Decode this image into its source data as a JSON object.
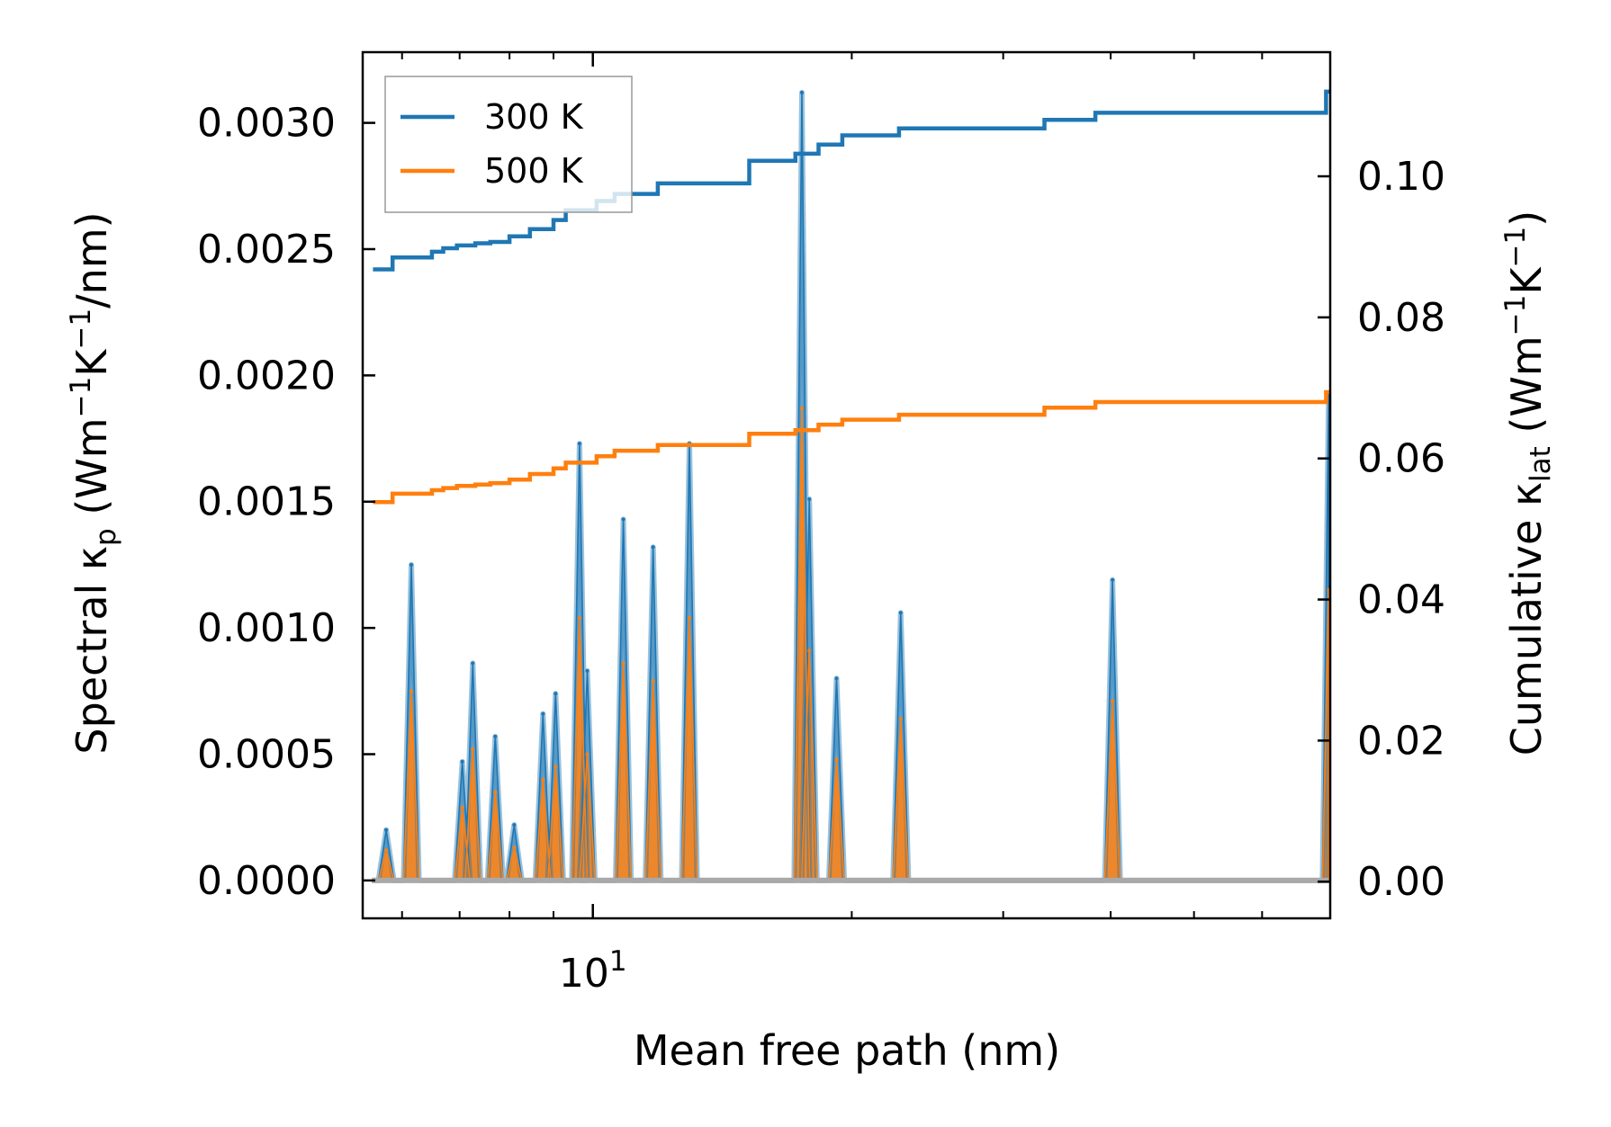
{
  "chart_data": {
    "type": "line",
    "xlabel": "Mean free path (nm)",
    "ylabel_left": {
      "prefix": "Spectral κ",
      "sub": "p",
      "mid1": " (Wm",
      "sup1": "−1",
      "mid2": "K",
      "sup2": "−1",
      "suffix": "/nm)"
    },
    "ylabel_right": {
      "prefix": "Cumulative κ",
      "sub": "lat",
      "mid1": " (Wm",
      "sup1": "−1",
      "mid2": "K",
      "sup2": "−1",
      "suffix": ")"
    },
    "x_scale": "log",
    "xlim": [
      5.4,
      72
    ],
    "x_major_tick": {
      "value": 10,
      "base": "10",
      "exponent": "1"
    },
    "x_minor_ticks": [
      6,
      7,
      8,
      9,
      20,
      30,
      40,
      50,
      60
    ],
    "ylim_left": [
      -0.00015,
      0.00328
    ],
    "yticks_left": [
      "0.0000",
      "0.0005",
      "0.0010",
      "0.0015",
      "0.0020",
      "0.0025",
      "0.0030"
    ],
    "ylim_right": [
      -0.0052,
      0.1176
    ],
    "yticks_right": [
      "0.00",
      "0.02",
      "0.04",
      "0.06",
      "0.08",
      "0.10"
    ],
    "legend": {
      "location": "upper-left",
      "entries": [
        "300 K",
        "500 K"
      ]
    },
    "colors": {
      "300K": "#1f77b4",
      "500K": "#ff7f0e",
      "band": "#a9a9a9"
    },
    "spectral_peaks": {
      "mfp_nm": [
        5.75,
        6.15,
        7.05,
        7.25,
        7.7,
        8.1,
        8.75,
        9.05,
        9.65,
        9.85,
        10.85,
        11.75,
        12.95,
        17.5,
        17.85,
        19.2,
        22.8,
        40.2,
        72.0
      ],
      "series": [
        {
          "name": "300 K",
          "values": [
            0.0002,
            0.00125,
            0.00047,
            0.00086,
            0.00057,
            0.00022,
            0.00066,
            0.00074,
            0.00173,
            0.00083,
            0.00143,
            0.00132,
            0.00173,
            0.00312,
            0.00151,
            0.0008,
            0.00106,
            0.00119,
            0.00192
          ]
        },
        {
          "name": "500 K",
          "values": [
            0.00012,
            0.00075,
            0.00029,
            0.00052,
            0.00035,
            0.00013,
            0.0004,
            0.00045,
            0.00104,
            0.0005,
            0.00086,
            0.00079,
            0.00104,
            0.00187,
            0.00091,
            0.00048,
            0.00064,
            0.00071,
            0.00115
          ]
        }
      ]
    },
    "cumulative": {
      "series": [
        {
          "name": "300 K",
          "mfp_nm": [
            5.55,
            5.7,
            5.85,
            6.3,
            6.5,
            6.7,
            6.95,
            7.3,
            7.6,
            8.0,
            8.45,
            9.0,
            9.3,
            10.1,
            10.6,
            11.9,
            12.3,
            15.2,
            16.1,
            17.2,
            18.3,
            19.5,
            21.0,
            22.7,
            24.5,
            33.5,
            38.4,
            70.5,
            71.2,
            72.0
          ],
          "values": [
            0.0868,
            0.0868,
            0.0885,
            0.0885,
            0.0893,
            0.0898,
            0.0902,
            0.0905,
            0.0907,
            0.0915,
            0.0925,
            0.0938,
            0.0952,
            0.0965,
            0.0975,
            0.099,
            0.099,
            0.1022,
            0.1022,
            0.1032,
            0.1045,
            0.1058,
            0.1058,
            0.1068,
            0.1068,
            0.108,
            0.109,
            0.109,
            0.112,
            0.112
          ]
        },
        {
          "name": "500 K",
          "mfp_nm": [
            5.55,
            5.7,
            5.85,
            6.3,
            6.5,
            6.7,
            6.95,
            7.3,
            7.6,
            8.0,
            8.45,
            9.0,
            9.3,
            10.1,
            10.6,
            11.9,
            12.3,
            15.2,
            16.1,
            17.2,
            18.3,
            19.5,
            21.0,
            22.7,
            24.5,
            33.5,
            38.4,
            70.5,
            71.2,
            72.0
          ],
          "values": [
            0.0538,
            0.0538,
            0.055,
            0.055,
            0.0555,
            0.0558,
            0.0561,
            0.0563,
            0.0565,
            0.057,
            0.0578,
            0.0586,
            0.0594,
            0.0603,
            0.0611,
            0.0619,
            0.0619,
            0.0635,
            0.0635,
            0.064,
            0.0648,
            0.0655,
            0.0655,
            0.0662,
            0.0662,
            0.0672,
            0.068,
            0.068,
            0.0694,
            0.0694
          ]
        }
      ]
    }
  }
}
